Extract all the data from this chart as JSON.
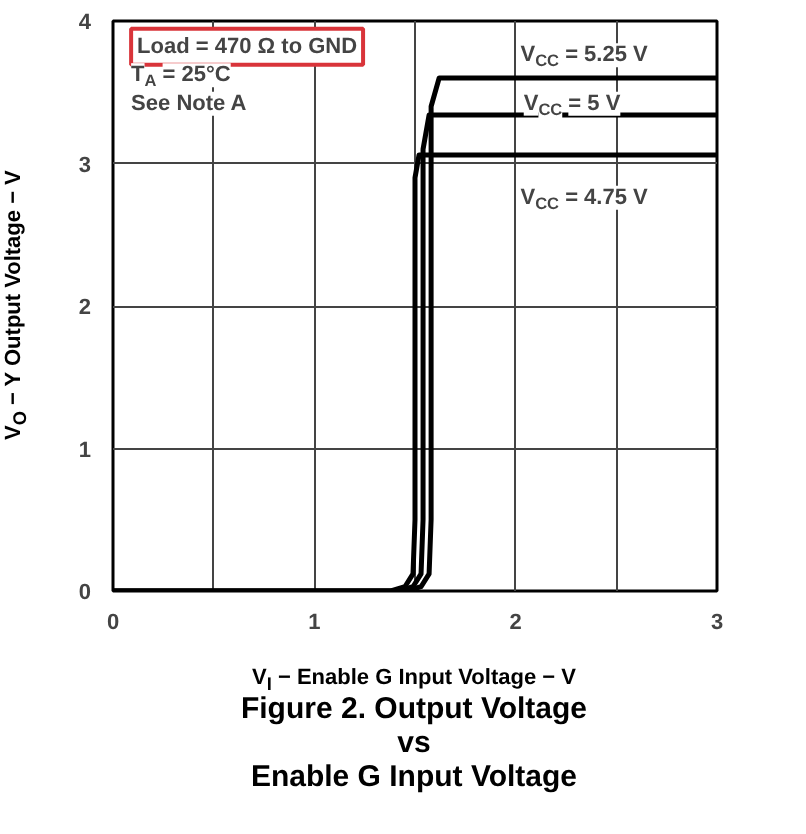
{
  "chart_data": {
    "type": "line",
    "title": "Figure 2. Output Voltage\nvs\nEnable G Input Voltage",
    "xlabel": "V$_{I}$ − Enable G Input Voltage − V",
    "ylabel": "V$_{O}$ − Y Output Voltage − V",
    "xlim": [
      0,
      3
    ],
    "ylim": [
      0,
      4
    ],
    "xticks": [
      0,
      {
        "value": 0.5,
        "label": null
      },
      1,
      {
        "value": 1.5,
        "label": null
      },
      2,
      {
        "value": 2.5,
        "label": null
      },
      3
    ],
    "yticks": [
      0,
      1,
      2,
      3,
      4
    ],
    "grid": true,
    "marker": "none",
    "line_style": "solid",
    "series": [
      {
        "color": "#000000",
        "x": [
          0,
          1.38,
          1.45,
          1.49,
          1.5,
          1.5,
          1.52,
          3
        ],
        "values": [
          0,
          0,
          0.03,
          0.12,
          0.5,
          2.9,
          3.06,
          3.06
        ]
      },
      {
        "color": "#000000",
        "x": [
          0,
          1.42,
          1.49,
          1.53,
          1.54,
          1.54,
          1.57,
          3
        ],
        "values": [
          0,
          0,
          0.03,
          0.12,
          0.5,
          3.1,
          3.34,
          3.34
        ]
      },
      {
        "color": "#000000",
        "x": [
          0,
          1.46,
          1.53,
          1.57,
          1.58,
          1.58,
          1.62,
          3
        ],
        "values": [
          0,
          0,
          0.03,
          0.12,
          0.5,
          3.4,
          3.6,
          3.6
        ]
      }
    ],
    "annotations": [
      "Load = 470 Ω to GND",
      "T$_{A}$ = 25°C",
      "See Note A",
      "V$_{CC}$ = 5.25 V",
      "V$_{CC}$ = 5 V",
      "V$_{CC}$ = 4.75 V"
    ]
  }
}
